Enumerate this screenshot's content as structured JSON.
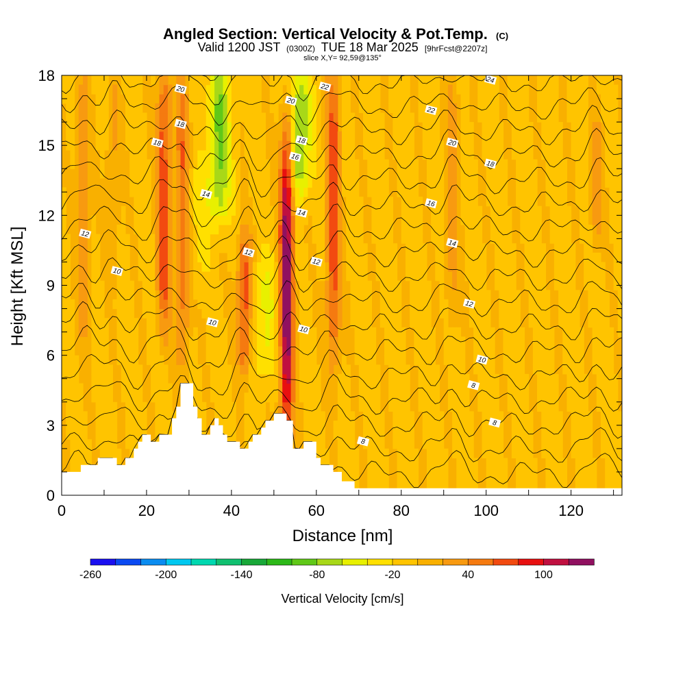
{
  "title": {
    "main": "Angled Section: Vertical Velocity & Pot.Temp.",
    "main_unit": "(C)",
    "valid_prefix": "Valid 1200 JST",
    "valid_utc": "(0300Z)",
    "valid_date": "TUE 18 Mar 2025",
    "forecast": "[9hrFcst@2207z]",
    "slice": "slice X,Y= 92,59@135°"
  },
  "chart_data": {
    "type": "heatmap",
    "title": "Angled Section: Vertical Velocity & Pot.Temp.",
    "xlabel": "Distance [nm]",
    "ylabel": "Height [Kft MSL]",
    "xlim": [
      0,
      132
    ],
    "ylim": [
      0,
      18
    ],
    "x_ticks": [
      0,
      20,
      40,
      60,
      80,
      100,
      120
    ],
    "y_ticks": [
      0,
      3,
      6,
      9,
      12,
      15,
      18
    ],
    "colorbar": {
      "title": "Vertical Velocity [cm/s]",
      "tick_labels": [
        "-260",
        "-200",
        "-140",
        "-80",
        "-20",
        "40",
        "100"
      ],
      "tick_values": [
        -260,
        -200,
        -140,
        -80,
        -20,
        40,
        100
      ],
      "bins": [
        -260,
        -240,
        -220,
        -200,
        -180,
        -160,
        -140,
        -120,
        -100,
        -80,
        -60,
        -40,
        -20,
        0,
        20,
        40,
        60,
        80,
        100,
        120,
        140
      ],
      "colors": [
        "#1a0ff0",
        "#0a49f2",
        "#0a8cf0",
        "#00c8f0",
        "#00d8b0",
        "#10c070",
        "#18a838",
        "#2cb818",
        "#60c818",
        "#a8d818",
        "#e8f000",
        "#ffe000",
        "#ffc400",
        "#f9b000",
        "#f89a10",
        "#f57a10",
        "#f24a10",
        "#e81010",
        "#c01040",
        "#901060"
      ]
    },
    "vertical_velocity_updrafts": [
      {
        "x": 5,
        "z_bottom": 7,
        "z_top": 18,
        "w": 40
      },
      {
        "x": 12,
        "z_bottom": 10,
        "z_top": 18,
        "w": 30
      },
      {
        "x": 24,
        "z_bottom": 7.5,
        "z_top": 18,
        "w": 80
      },
      {
        "x": 28.5,
        "z_bottom": 6,
        "z_top": 18,
        "w": 60
      },
      {
        "x": 43,
        "z_bottom": 5.5,
        "z_top": 11,
        "w": 80
      },
      {
        "x": 53,
        "z_bottom": 3.2,
        "z_top": 15.5,
        "w": 140
      },
      {
        "x": 64,
        "z_bottom": 6,
        "z_top": 18,
        "w": 80
      },
      {
        "x": 92,
        "z_bottom": 8,
        "z_top": 18,
        "w": 40
      },
      {
        "x": 126,
        "z_bottom": 11,
        "z_top": 16,
        "w": 40
      }
    ],
    "vertical_velocity_downdrafts": [
      {
        "x": 37,
        "z_bottom": 12,
        "z_top": 18,
        "w": -80
      },
      {
        "x": 56,
        "z_bottom": 13,
        "z_top": 18,
        "w": -80
      },
      {
        "x": 48,
        "z_bottom": 5,
        "z_top": 10,
        "w": -40
      },
      {
        "x": 32,
        "z_bottom": 9,
        "z_top": 14,
        "w": -20
      }
    ],
    "terrain": [
      {
        "x": 0,
        "z": 1.0
      },
      {
        "x": 4.5,
        "z": 1.0
      },
      {
        "x": 4.5,
        "z": 1.3
      },
      {
        "x": 8.5,
        "z": 1.3
      },
      {
        "x": 8.5,
        "z": 1.6
      },
      {
        "x": 13,
        "z": 1.6
      },
      {
        "x": 13,
        "z": 1.3
      },
      {
        "x": 15,
        "z": 1.3
      },
      {
        "x": 15,
        "z": 1.6
      },
      {
        "x": 17,
        "z": 1.6
      },
      {
        "x": 17,
        "z": 2.0
      },
      {
        "x": 18,
        "z": 2.0
      },
      {
        "x": 18,
        "z": 2.3
      },
      {
        "x": 19,
        "z": 2.3
      },
      {
        "x": 19,
        "z": 2.6
      },
      {
        "x": 21,
        "z": 2.6
      },
      {
        "x": 21,
        "z": 2.3
      },
      {
        "x": 23,
        "z": 2.3
      },
      {
        "x": 23,
        "z": 2.6
      },
      {
        "x": 26,
        "z": 2.6
      },
      {
        "x": 26,
        "z": 3.3
      },
      {
        "x": 27,
        "z": 3.3
      },
      {
        "x": 27,
        "z": 3.8
      },
      {
        "x": 28,
        "z": 3.8
      },
      {
        "x": 28,
        "z": 4.8
      },
      {
        "x": 31,
        "z": 4.8
      },
      {
        "x": 31,
        "z": 3.8
      },
      {
        "x": 32,
        "z": 3.8
      },
      {
        "x": 32,
        "z": 3.3
      },
      {
        "x": 33,
        "z": 3.3
      },
      {
        "x": 33,
        "z": 2.6
      },
      {
        "x": 35,
        "z": 2.6
      },
      {
        "x": 35,
        "z": 3.0
      },
      {
        "x": 36,
        "z": 3.0
      },
      {
        "x": 36,
        "z": 3.3
      },
      {
        "x": 37,
        "z": 3.3
      },
      {
        "x": 37,
        "z": 3.0
      },
      {
        "x": 38,
        "z": 3.0
      },
      {
        "x": 38,
        "z": 2.6
      },
      {
        "x": 39,
        "z": 2.6
      },
      {
        "x": 39,
        "z": 2.3
      },
      {
        "x": 42,
        "z": 2.3
      },
      {
        "x": 42,
        "z": 2.0
      },
      {
        "x": 44,
        "z": 2.0
      },
      {
        "x": 44,
        "z": 2.3
      },
      {
        "x": 45,
        "z": 2.3
      },
      {
        "x": 45,
        "z": 2.6
      },
      {
        "x": 47,
        "z": 2.6
      },
      {
        "x": 47,
        "z": 2.9
      },
      {
        "x": 48,
        "z": 2.9
      },
      {
        "x": 48,
        "z": 3.2
      },
      {
        "x": 50,
        "z": 3.2
      },
      {
        "x": 50,
        "z": 3.5
      },
      {
        "x": 53,
        "z": 3.5
      },
      {
        "x": 53,
        "z": 3.2
      },
      {
        "x": 54.5,
        "z": 3.2
      },
      {
        "x": 54.5,
        "z": 2.0
      },
      {
        "x": 57,
        "z": 2.0
      },
      {
        "x": 57,
        "z": 2.3
      },
      {
        "x": 60,
        "z": 2.3
      },
      {
        "x": 60,
        "z": 1.6
      },
      {
        "x": 61,
        "z": 1.6
      },
      {
        "x": 61,
        "z": 1.3
      },
      {
        "x": 64,
        "z": 1.3
      },
      {
        "x": 64,
        "z": 1.0
      },
      {
        "x": 66,
        "z": 1.0
      },
      {
        "x": 66,
        "z": 0.6
      },
      {
        "x": 69,
        "z": 0.6
      },
      {
        "x": 69,
        "z": 0.3
      },
      {
        "x": 72,
        "z": 0.3
      },
      {
        "x": 72,
        "z": 0.3
      },
      {
        "x": 132,
        "z": 0.3
      }
    ],
    "theta_contour_labels": [
      {
        "text": "20",
        "x": 28,
        "z": 17.4
      },
      {
        "text": "18",
        "x": 28,
        "z": 15.9
      },
      {
        "text": "18",
        "x": 22.5,
        "z": 15.1
      },
      {
        "text": "14",
        "x": 34,
        "z": 12.9
      },
      {
        "text": "12",
        "x": 5.5,
        "z": 11.2
      },
      {
        "text": "10",
        "x": 13,
        "z": 9.6
      },
      {
        "text": "10",
        "x": 35.5,
        "z": 7.4
      },
      {
        "text": "12",
        "x": 44,
        "z": 10.4
      },
      {
        "text": "20",
        "x": 54,
        "z": 16.9
      },
      {
        "text": "18",
        "x": 56.5,
        "z": 15.2
      },
      {
        "text": "16",
        "x": 55,
        "z": 14.5
      },
      {
        "text": "14",
        "x": 56.5,
        "z": 12.1
      },
      {
        "text": "12",
        "x": 60,
        "z": 10.0
      },
      {
        "text": "10",
        "x": 57,
        "z": 7.1
      },
      {
        "text": "22",
        "x": 62,
        "z": 17.5
      },
      {
        "text": "24",
        "x": 101,
        "z": 17.8
      },
      {
        "text": "22",
        "x": 87,
        "z": 16.5
      },
      {
        "text": "20",
        "x": 92,
        "z": 15.1
      },
      {
        "text": "18",
        "x": 101,
        "z": 14.2
      },
      {
        "text": "16",
        "x": 87,
        "z": 12.5
      },
      {
        "text": "14",
        "x": 92,
        "z": 10.8
      },
      {
        "text": "12",
        "x": 96,
        "z": 8.2
      },
      {
        "text": "10",
        "x": 99,
        "z": 5.8
      },
      {
        "text": "8",
        "x": 97,
        "z": 4.7
      },
      {
        "text": "8",
        "x": 102,
        "z": 3.1
      },
      {
        "text": "8",
        "x": 71,
        "z": 2.3
      }
    ]
  }
}
